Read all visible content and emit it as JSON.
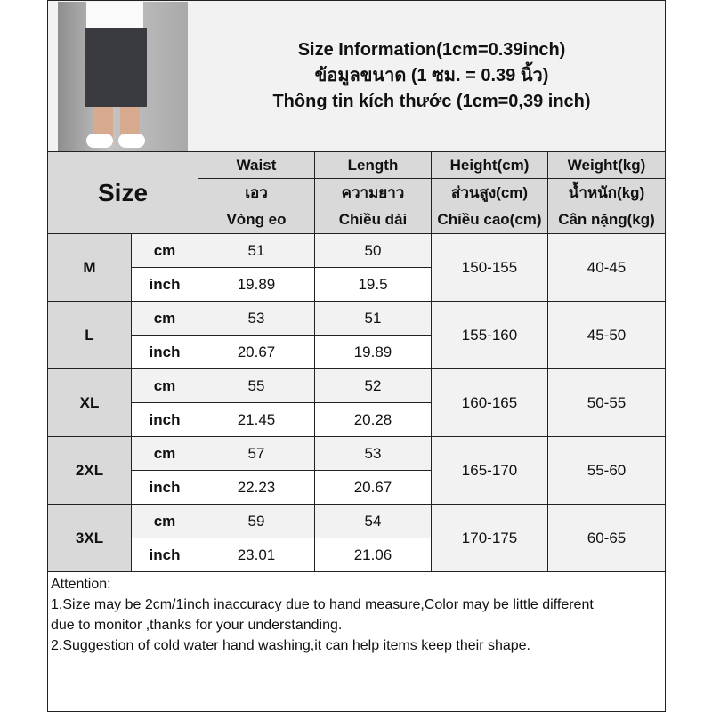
{
  "title_lines": [
    "Size Information(1cm=0.39inch)",
    "ข้อมูลขนาด (1 ซม. = 0.39 นิ้ว)",
    "Thông tin kích thước (1cm=0,39 inch)"
  ],
  "size_header": "Size",
  "columns": [
    {
      "en": "Waist",
      "th": "เอว",
      "vi": "Vòng eo"
    },
    {
      "en": "Length",
      "th": "ความยาว",
      "vi": "Chiều dài"
    },
    {
      "en": "Height(cm)",
      "th": "ส่วนสูง(cm)",
      "vi": "Chiều cao(cm)"
    },
    {
      "en": "Weight(kg)",
      "th": "น้ำหนัก(kg)",
      "vi": "Cân nặng(kg)"
    }
  ],
  "units": {
    "cm": "cm",
    "inch": "inch"
  },
  "rows": [
    {
      "size": "M",
      "cm": [
        "51",
        "50"
      ],
      "inch": [
        "19.89",
        "19.5"
      ],
      "height": "150-155",
      "weight": "40-45"
    },
    {
      "size": "L",
      "cm": [
        "53",
        "51"
      ],
      "inch": [
        "20.67",
        "19.89"
      ],
      "height": "155-160",
      "weight": "45-50"
    },
    {
      "size": "XL",
      "cm": [
        "55",
        "52"
      ],
      "inch": [
        "21.45",
        "20.28"
      ],
      "height": "160-165",
      "weight": "50-55"
    },
    {
      "size": "2XL",
      "cm": [
        "57",
        "53"
      ],
      "inch": [
        "22.23",
        "20.67"
      ],
      "height": "165-170",
      "weight": "55-60"
    },
    {
      "size": "3XL",
      "cm": [
        "59",
        "54"
      ],
      "inch": [
        "23.01",
        "21.06"
      ],
      "height": "170-175",
      "weight": "60-65"
    }
  ],
  "attention": [
    "Attention:",
    "1.Size may be 2cm/1inch inaccuracy due to hand measure,Color may be little different",
    "due to monitor ,thanks for your understanding.",
    "2.Suggestion of cold water hand washing,it can help items keep their shape."
  ]
}
